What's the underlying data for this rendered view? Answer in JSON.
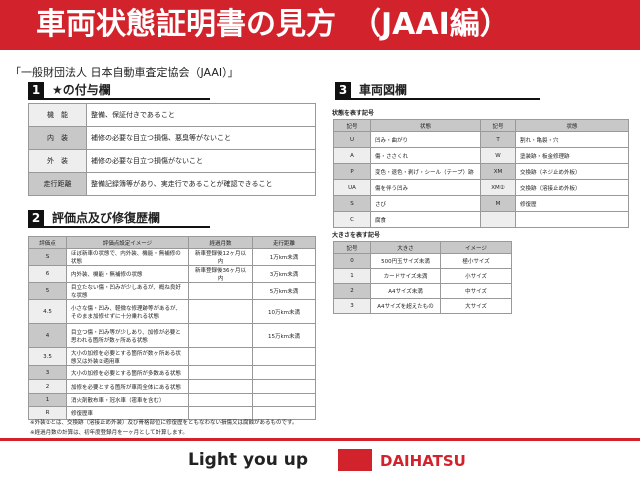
{
  "header": {
    "title": "車両状態証明書の見方　（JAAI編）"
  },
  "subtitle": "「一般財団法人 日本自動車査定協会（JAAI）」",
  "section1": {
    "num": "1",
    "title": "★の付与欄",
    "rows": [
      [
        "機　能",
        "整備、保証付きであること"
      ],
      [
        "内　装",
        "補修の必要な目立つ損傷、悪臭等がないこと"
      ],
      [
        "外　装",
        "補修の必要な目立つ損傷がないこと"
      ],
      [
        "走行距離",
        "整備記録簿等があり、実走行であることが確認できること"
      ]
    ]
  },
  "section2": {
    "num": "2",
    "title": "評価点及び修復歴欄",
    "headers": [
      "評価点",
      "評価点設定イメージ",
      "経過月数",
      "走行距離"
    ],
    "rows": [
      [
        "S",
        "ほぼ新車の状態で、内外装、機能・無補修の状態",
        "新車登録後12ヶ月以内",
        "1万km未満"
      ],
      [
        "6",
        "内外装、機能・無補修の状態",
        "新車登録後36ヶ月以内",
        "3万km未満"
      ],
      [
        "5",
        "目立たない傷・凹みが少しあるが、概ね良好な状態",
        "",
        "5万km未満"
      ],
      [
        "4.5",
        "小さな傷・凹み、軽微な修理跡等があるが、そのまま加修せずに十分乗れる状態",
        "",
        "10万km未満"
      ],
      [
        "4",
        "目立つ傷・凹み等が少しあり、加修が必要と思われる箇所が数ヶ所ある状態",
        "",
        "15万km未満"
      ],
      [
        "3.5",
        "大小の加修を必要とする箇所が数ヶ所ある状態又は外装②適用車",
        "",
        ""
      ],
      [
        "3",
        "大小の加修を必要とする箇所が多数ある状態",
        "",
        ""
      ],
      [
        "2",
        "加修を必要とする箇所が車両全体にある状態",
        "",
        ""
      ],
      [
        "1",
        "消火剤散布車・冠水車（雹車を含む）",
        "",
        ""
      ],
      [
        "R",
        "修復歴車",
        "",
        ""
      ]
    ]
  },
  "notes": [
    "※外装②とは、交換跡（溶接止め外装）及び骨格部位に修復歴をともなわない損傷又は腐蝕があるものです。",
    "※経過月数の計算は、初年度登録月を一ヶ月として計算します。"
  ],
  "section3": {
    "num": "3",
    "title": "車両図欄",
    "state_label": "状態を表す記号",
    "state_headers": [
      "記号",
      "状態",
      "記号",
      "状態"
    ],
    "state_rows": [
      [
        "U",
        "凹み・曲がり",
        "T",
        "割れ・亀裂・穴"
      ],
      [
        "A",
        "傷・ささくれ",
        "W",
        "塗装跡・板金修理跡"
      ],
      [
        "P",
        "変色・退色・剥げ・シール（テープ）跡",
        "XM",
        "交換跡（ネジ止め外板）"
      ],
      [
        "UA",
        "傷を伴う凹み",
        "XM②",
        "交換跡（溶接止め外板）"
      ],
      [
        "S",
        "さび",
        "M",
        "修復歴"
      ],
      [
        "C",
        "腐食",
        "",
        ""
      ]
    ],
    "size_label": "大きさを表す記号",
    "size_headers": [
      "記号",
      "大きさ",
      "イメージ"
    ],
    "size_rows": [
      [
        "0",
        "500円玉サイズ未満",
        "極小サイズ"
      ],
      [
        "1",
        "カードサイズ未満",
        "小サイズ"
      ],
      [
        "2",
        "A4サイズ未満",
        "中サイズ"
      ],
      [
        "3",
        "A4サイズを超えたもの",
        "大サイズ"
      ]
    ]
  },
  "footer": {
    "slogan": "Light you up",
    "brand": "DAIHATSU"
  },
  "colors": {
    "brand_red": "#d2232c"
  }
}
